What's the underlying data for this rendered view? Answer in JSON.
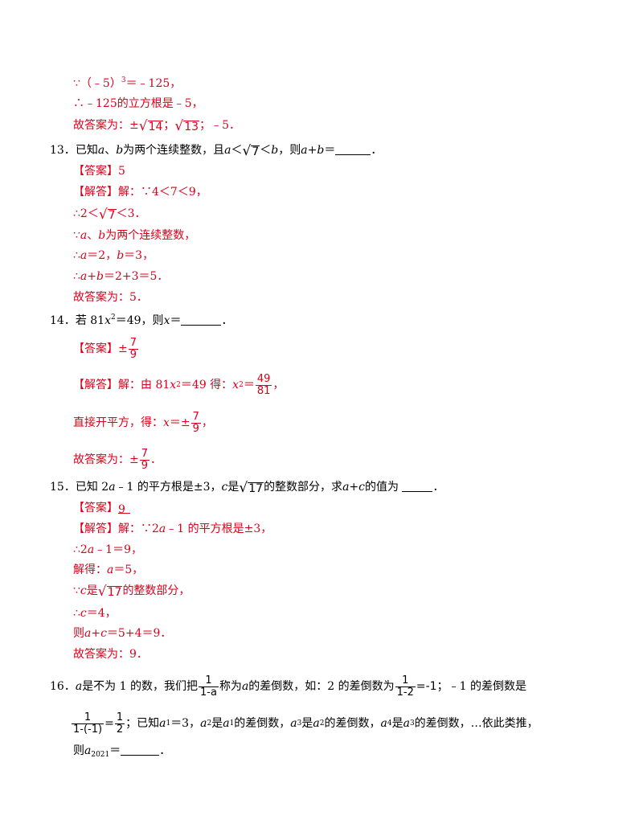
{
  "q12": {
    "l1_a": "∵（﹣5）",
    "l1_exp": "3",
    "l1_b": "＝﹣125，",
    "l2": "∴﹣125的立方根是﹣5，",
    "l3_a": "故答案为：±",
    "l3_r1": "14",
    "l3_b": "；",
    "l3_r2": "13",
    "l3_c": "；﹣5．"
  },
  "q13": {
    "num": "13．",
    "t1": "已知",
    "a": "a",
    "t2": "、",
    "b": "b",
    "t3": "为两个连续整数，且",
    "a2": "a",
    "lt": "＜",
    "r": "7",
    "lt2": "＜",
    "b2": "b",
    "t4": "，则",
    "ab": "a",
    "plus": "+",
    "bb": "b",
    "eq": "＝",
    "end": "．",
    "ans_tag": "【答案】",
    "ans": "5",
    "sol_tag": "【解答】",
    "s1": "解：∵4＜7＜9，",
    "s2_a": "∴2＜",
    "s2_r": "7",
    "s2_b": "＜3．",
    "s3_a": "∵",
    "s3_v1": "a",
    "s3_b": "、",
    "s3_v2": "b",
    "s3_c": "为两个连续整数，",
    "s4_a": "∴",
    "s4_v1": "a",
    "s4_b": "＝2，",
    "s4_v2": "b",
    "s4_c": "＝3，",
    "s5_a": "∴",
    "s5_v1": "a",
    "s5_b": "+",
    "s5_v2": "b",
    "s5_c": "＝2+3＝5．",
    "s6": "故答案为：5．"
  },
  "q14": {
    "num": "14．",
    "t1": "若 81",
    "x": "x",
    "exp": "2",
    "t2": "＝49，则",
    "x2": "x",
    "t3": "＝",
    "end": "．",
    "ans_tag": "【答案】",
    "ans_pm": "±",
    "ans_num": "7",
    "ans_den": "9",
    "sol_tag": "【解答】",
    "s1_a": "解：由 81",
    "s1_x": "x",
    "s1_exp": "2",
    "s1_b": "＝49 得：",
    "s1_x2": "x",
    "s1_exp2": "2",
    "s1_c": "＝",
    "s1_num": "49",
    "s1_den": "81",
    "s1_d": "，",
    "s2_a": "直接开平方，得：",
    "s2_x": "x",
    "s2_b": "＝±",
    "s2_num": "7",
    "s2_den": "9",
    "s2_c": "，",
    "s3_a": "故答案为：±",
    "s3_num": "7",
    "s3_den": "9",
    "s3_b": "．"
  },
  "q15": {
    "num": "15．",
    "t1": "已知 2",
    "a": "a",
    "t2": "﹣1 的平方根是±3，",
    "c": "c",
    "t3": "是",
    "r": "17",
    "t4": "的整数部分，求",
    "a2": "a",
    "plus": "+",
    "c2": "c",
    "t5": "的值为 ",
    "end": "．",
    "ans_tag": "【答案】",
    "ans": "9",
    "sol_tag": "【解答】",
    "s1_a": "解：∵2",
    "s1_v": "a",
    "s1_b": "﹣1 的平方根是±3，",
    "s2_a": "∴2",
    "s2_v": "a",
    "s2_b": "﹣1＝9，",
    "s3_a": "解得：",
    "s3_v": "a",
    "s3_b": "＝5，",
    "s4_a": "∵",
    "s4_v": "c",
    "s4_b": "是",
    "s4_r": "17",
    "s4_c": "的整数部分，",
    "s5_a": "∴",
    "s5_v": "c",
    "s5_b": "＝4，",
    "s6_a": "则",
    "s6_v1": "a",
    "s6_b": "+",
    "s6_v2": "c",
    "s6_c": "＝5+4＝9．",
    "s7": "故答案为：9．"
  },
  "q16": {
    "num": "16．",
    "a": "a",
    "t1": "是不为 1 的数，我们把",
    "f1_num": "1",
    "f1_den": "1-a",
    "t2": "称为",
    "a2": "a",
    "t3": "的差倒数，如：2 的差倒数为",
    "f2_num": "1",
    "f2_den": "1-2",
    "t4": "=-1",
    "t5": "；﹣1 的差倒数是",
    "f3_num": "1",
    "f3_den": "1-(-1)",
    "t6": "=",
    "f4_num": "1",
    "f4_den": "2",
    "t7": "；已知",
    "a1": "a",
    "a1s": "1",
    "t8": "＝3，",
    "a2v": "a",
    "a2s": "2",
    "t9": "是",
    "a1b": "a",
    "a1bs": "1",
    "t10": "的差倒数，",
    "a3v": "a",
    "a3s": "3",
    "t11": "是",
    "a2b": "a",
    "a2bs": "2",
    "t12": "的差倒数，",
    "a4v": "a",
    "a4s": "4",
    "t13": "是",
    "a3b": "a",
    "a3bs": "3",
    "t14": "的差倒数，…依此类推，",
    "t15": "则",
    "a2021": "a",
    "a2021s": "2021",
    "t16": "＝",
    "end": "．"
  }
}
